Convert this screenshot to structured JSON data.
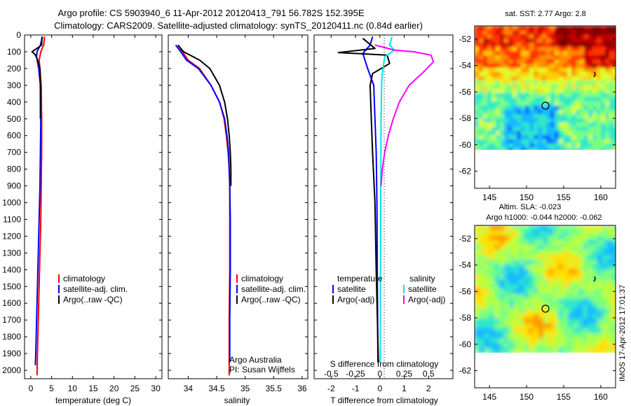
{
  "header": {
    "line1": "Argo profile: CS 5903940_6 11-Apr-2012 20120413_791 56.782S 152.395E",
    "line2": "Climatology: CARS2009. Satellite-adjusted climatology: synTS_20120411.nc (0.84d earlier)"
  },
  "side_note": "IMOS 17-Apr-2012 17:01:37",
  "colors": {
    "climatology": "#ff0000",
    "satellite": "#0000ff",
    "argo": "#000000",
    "salinity_satellite": "#00e5e5",
    "salinity_argo": "#ff00ff"
  },
  "chart_data": [
    {
      "type": "line",
      "panel": "temperature",
      "xlabel": "temperature (deg C)",
      "ylabel": "",
      "xlim": [
        -1.5,
        31.5
      ],
      "ylim": [
        2050,
        0
      ],
      "xticks": [
        0,
        5,
        10,
        15,
        20,
        25,
        30
      ],
      "yticks": [
        0,
        100,
        200,
        300,
        400,
        500,
        600,
        700,
        800,
        900,
        1000,
        1100,
        1200,
        1300,
        1400,
        1500,
        1600,
        1700,
        1800,
        1900,
        2000
      ],
      "legend": [
        "climatology",
        "satellite-adj. clim.",
        "Argo(..raw -QC)"
      ],
      "series": [
        {
          "name": "climatology",
          "color": "#ff0000",
          "points": [
            [
              3.3,
              10
            ],
            [
              3.1,
              60
            ],
            [
              2.4,
              100
            ],
            [
              2.0,
              150
            ],
            [
              2.2,
              200
            ],
            [
              2.5,
              300
            ],
            [
              2.6,
              500
            ],
            [
              2.6,
              700
            ],
            [
              2.5,
              900
            ],
            [
              2.4,
              1100
            ],
            [
              2.2,
              1300
            ],
            [
              2.0,
              1500
            ],
            [
              1.8,
              1700
            ],
            [
              1.6,
              1900
            ],
            [
              1.5,
              2030
            ]
          ]
        },
        {
          "name": "satellite-adj. clim.",
          "color": "#0000ff",
          "points": [
            [
              2.8,
              10
            ],
            [
              2.3,
              60
            ],
            [
              1.5,
              100
            ],
            [
              1.4,
              130
            ],
            [
              1.9,
              200
            ],
            [
              2.3,
              300
            ],
            [
              2.4,
              500
            ],
            [
              2.3,
              700
            ],
            [
              2.2,
              900
            ],
            [
              2.0,
              1100
            ],
            [
              1.8,
              1300
            ],
            [
              1.6,
              1500
            ],
            [
              1.4,
              1700
            ],
            [
              1.2,
              1900
            ],
            [
              1.1,
              1970
            ]
          ]
        },
        {
          "name": "Argo(..raw -QC)",
          "color": "#000000",
          "points": [
            [
              2.7,
              10
            ],
            [
              2.6,
              60
            ],
            [
              0.3,
              100
            ],
            [
              1.0,
              115
            ],
            [
              1.5,
              140
            ],
            [
              2.2,
              200
            ],
            [
              2.3,
              300
            ],
            [
              2.3,
              500
            ]
          ]
        }
      ]
    },
    {
      "type": "line",
      "panel": "salinity",
      "xlabel": "salinity",
      "ylabel": "",
      "xlim": [
        33.65,
        36.1
      ],
      "ylim": [
        2050,
        0
      ],
      "xticks": [
        34,
        34.5,
        35,
        35.5,
        36
      ],
      "legend": [
        "climatology",
        "satellite-adj. clim.",
        "Argo(..raw -QC)"
      ],
      "annotations": [
        "Argo Australia",
        "PI: Susan Wijffels"
      ],
      "series": [
        {
          "name": "climatology",
          "color": "#ff0000",
          "points": [
            [
              33.82,
              60
            ],
            [
              33.9,
              100
            ],
            [
              34.0,
              150
            ],
            [
              34.2,
              200
            ],
            [
              34.4,
              300
            ],
            [
              34.55,
              400
            ],
            [
              34.63,
              500
            ],
            [
              34.67,
              600
            ],
            [
              34.7,
              700
            ],
            [
              34.72,
              800
            ],
            [
              34.73,
              900
            ],
            [
              34.73,
              1100
            ],
            [
              34.73,
              1400
            ],
            [
              34.72,
              1700
            ],
            [
              34.72,
              2000
            ],
            [
              34.72,
              2030
            ]
          ]
        },
        {
          "name": "satellite-adj. clim.",
          "color": "#0000ff",
          "points": [
            [
              33.78,
              60
            ],
            [
              33.87,
              100
            ],
            [
              33.97,
              150
            ],
            [
              34.18,
              200
            ],
            [
              34.4,
              300
            ],
            [
              34.55,
              400
            ],
            [
              34.64,
              500
            ],
            [
              34.68,
              600
            ],
            [
              34.71,
              700
            ],
            [
              34.72,
              800
            ],
            [
              34.73,
              900
            ],
            [
              34.74,
              1100
            ],
            [
              34.74,
              1400
            ],
            [
              34.73,
              1700
            ],
            [
              34.73,
              1950
            ]
          ]
        },
        {
          "name": "Argo(..raw -QC)",
          "color": "#000000",
          "points": [
            [
              33.82,
              60
            ],
            [
              33.92,
              100
            ],
            [
              34.2,
              150
            ],
            [
              34.38,
              200
            ],
            [
              34.55,
              300
            ],
            [
              34.64,
              400
            ],
            [
              34.69,
              500
            ],
            [
              34.72,
              600
            ],
            [
              34.74,
              700
            ],
            [
              34.75,
              800
            ],
            [
              34.75,
              900
            ]
          ]
        }
      ]
    },
    {
      "type": "line",
      "panel": "difference",
      "xlabel": "T difference from climatology",
      "xlabel_top": "S difference from climatology",
      "xlim": [
        -2.7,
        3.0
      ],
      "ylim": [
        2050,
        0
      ],
      "xticks": [
        -2,
        -1,
        0,
        1,
        2
      ],
      "secondary_xticks": [
        -0.5,
        -0.25,
        0,
        0.25,
        0.5
      ],
      "legend": {
        "temperature": [
          "satellite",
          "Argo(-adj)"
        ],
        "salinity": [
          "satellite",
          "Argo(-adj)"
        ]
      },
      "legend_headers": [
        "temperature",
        "salinity"
      ],
      "series": [
        {
          "name": "temperature satellite",
          "color": "#0000ff",
          "points": [
            [
              -0.3,
              10
            ],
            [
              -0.4,
              60
            ],
            [
              -0.7,
              110
            ],
            [
              -0.5,
              200
            ],
            [
              -0.25,
              300
            ],
            [
              -0.2,
              500
            ],
            [
              -0.15,
              700
            ],
            [
              -0.12,
              1000
            ],
            [
              -0.1,
              1500
            ],
            [
              -0.08,
              1950
            ]
          ]
        },
        {
          "name": "temperature Argo(-adj)",
          "color": "#000000",
          "points": [
            [
              -0.7,
              20
            ],
            [
              -0.2,
              80
            ],
            [
              -1.7,
              105
            ],
            [
              0.3,
              120
            ],
            [
              0.4,
              170
            ],
            [
              -0.3,
              230
            ],
            [
              -0.4,
              300
            ],
            [
              -0.35,
              500
            ],
            [
              -0.3,
              700
            ],
            [
              -0.2,
              1000
            ],
            [
              -0.15,
              1400
            ],
            [
              -0.1,
              1700
            ],
            [
              -0.06,
              1950
            ]
          ]
        },
        {
          "name": "salinity satellite",
          "color": "#00e5e5",
          "points": [
            [
              0.5,
              10
            ],
            [
              0.4,
              60
            ],
            [
              0.6,
              90
            ],
            [
              0.2,
              130
            ],
            [
              0.08,
              250
            ],
            [
              0.05,
              500
            ],
            [
              0.04,
              800
            ],
            [
              0.03,
              1200
            ],
            [
              0.02,
              1600
            ],
            [
              0.02,
              1950
            ]
          ]
        },
        {
          "name": "salinity Argo(-adj)",
          "color": "#ff00ff",
          "points": [
            [
              -0.2,
              60
            ],
            [
              0.6,
              90
            ],
            [
              1.4,
              100
            ],
            [
              2.1,
              120
            ],
            [
              2.2,
              160
            ],
            [
              1.8,
              220
            ],
            [
              1.2,
              300
            ],
            [
              0.8,
              400
            ],
            [
              0.55,
              500
            ],
            [
              0.35,
              600
            ],
            [
              0.2,
              700
            ],
            [
              0.1,
              800
            ],
            [
              0.05,
              900
            ]
          ]
        }
      ]
    },
    {
      "type": "heatmap",
      "panel": "sst_map",
      "title": "sat. SST: 2.77  Argo: 2.8",
      "xlim": [
        143,
        162
      ],
      "ylim": [
        -63.3,
        -51
      ],
      "xticks": [
        145,
        150,
        155,
        160
      ],
      "yticks": [
        -52,
        -54,
        -56,
        -58,
        -60,
        -62
      ],
      "data_extent_lat": [
        -60,
        -51
      ],
      "marker": {
        "lon": 152.395,
        "lat": -56.782
      }
    },
    {
      "type": "heatmap",
      "panel": "sla_map",
      "title": "Altim. SLA: -0.023",
      "subtitle": "Argo h1000: -0.044 h2000: -0.062",
      "xlim": [
        143,
        162
      ],
      "ylim": [
        -63.3,
        -51
      ],
      "xticks": [
        145,
        150,
        155,
        160
      ],
      "yticks": [
        -52,
        -54,
        -56,
        -58,
        -60,
        -62
      ],
      "data_extent_lat": [
        -60,
        -51
      ],
      "marker": {
        "lon": 152.395,
        "lat": -56.782
      }
    }
  ]
}
